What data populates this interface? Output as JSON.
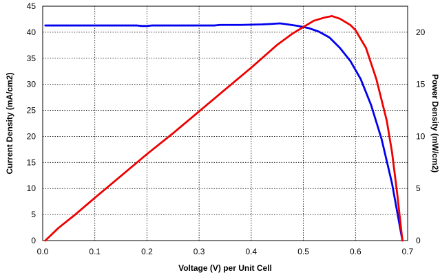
{
  "chart_data": {
    "type": "line",
    "title": "",
    "xlabel": "Voltage (V) per Unit Cell",
    "ylabel": "Current Density (mA/cm2)",
    "y2label": "Power Density (mW/cm2)",
    "xlim": [
      0,
      0.7
    ],
    "ylim": [
      0,
      45
    ],
    "y2lim": [
      0,
      22.5
    ],
    "grid": true,
    "x_ticks": [
      "0.0",
      "0.1",
      "0.2",
      "0.3",
      "0.4",
      "0.5",
      "0.6",
      "0.7"
    ],
    "y_ticks": [
      "0",
      "5",
      "10",
      "15",
      "20",
      "25",
      "30",
      "35",
      "40",
      "45"
    ],
    "y2_ticks": [
      "0",
      "5",
      "10",
      "15",
      "20"
    ],
    "series": [
      {
        "axis": "left",
        "color": "#0000ee",
        "points": [
          [
            0.005,
            41.3
          ],
          [
            0.05,
            41.3
          ],
          [
            0.1,
            41.3
          ],
          [
            0.15,
            41.3
          ],
          [
            0.18,
            41.3
          ],
          [
            0.19,
            41.2
          ],
          [
            0.2,
            41.2
          ],
          [
            0.21,
            41.3
          ],
          [
            0.25,
            41.3
          ],
          [
            0.3,
            41.3
          ],
          [
            0.33,
            41.3
          ],
          [
            0.34,
            41.4
          ],
          [
            0.38,
            41.4
          ],
          [
            0.42,
            41.5
          ],
          [
            0.44,
            41.6
          ],
          [
            0.455,
            41.7
          ],
          [
            0.47,
            41.5
          ],
          [
            0.49,
            41.2
          ],
          [
            0.51,
            40.8
          ],
          [
            0.53,
            40.1
          ],
          [
            0.55,
            39.0
          ],
          [
            0.57,
            37.0
          ],
          [
            0.59,
            34.5
          ],
          [
            0.61,
            31.0
          ],
          [
            0.63,
            26.0
          ],
          [
            0.65,
            19.5
          ],
          [
            0.67,
            11.0
          ],
          [
            0.68,
            5.5
          ],
          [
            0.69,
            0.0
          ]
        ]
      },
      {
        "axis": "right",
        "color": "#ee0000",
        "points": [
          [
            0.005,
            0.0
          ],
          [
            0.03,
            1.2
          ],
          [
            0.06,
            2.4
          ],
          [
            0.1,
            4.1
          ],
          [
            0.15,
            6.2
          ],
          [
            0.2,
            8.3
          ],
          [
            0.25,
            10.3
          ],
          [
            0.3,
            12.4
          ],
          [
            0.35,
            14.5
          ],
          [
            0.4,
            16.6
          ],
          [
            0.45,
            18.8
          ],
          [
            0.48,
            19.9
          ],
          [
            0.5,
            20.5
          ],
          [
            0.52,
            21.1
          ],
          [
            0.54,
            21.4
          ],
          [
            0.555,
            21.55
          ],
          [
            0.57,
            21.3
          ],
          [
            0.59,
            20.7
          ],
          [
            0.6,
            20.2
          ],
          [
            0.62,
            18.5
          ],
          [
            0.64,
            15.5
          ],
          [
            0.66,
            11.5
          ],
          [
            0.67,
            8.5
          ],
          [
            0.68,
            4.5
          ],
          [
            0.69,
            0.0
          ]
        ]
      }
    ]
  }
}
